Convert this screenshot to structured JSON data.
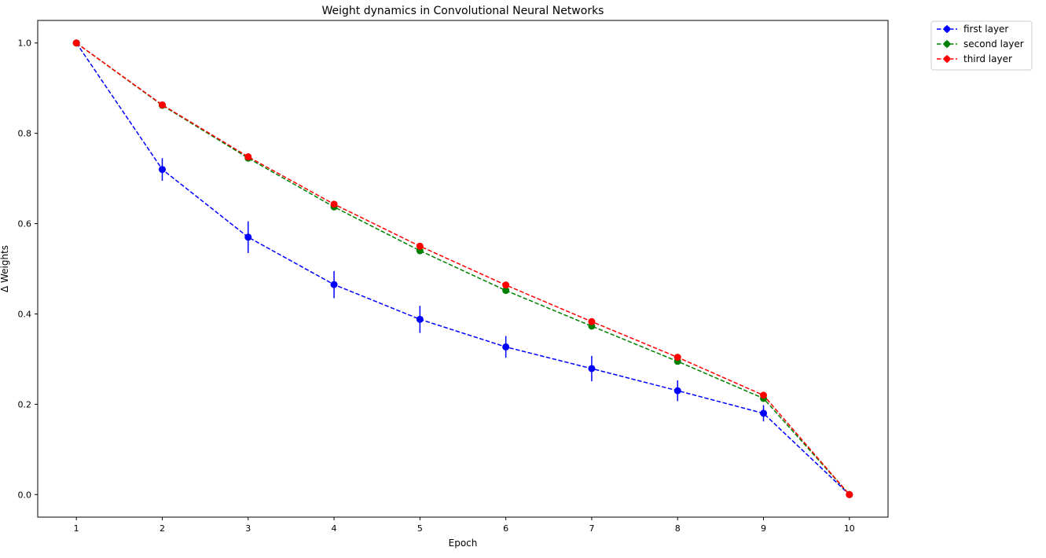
{
  "chart_data": {
    "type": "line",
    "title": "Weight dynamics in Convolutional Neural Networks",
    "xlabel": "Epoch",
    "ylabel": "Δ Weights",
    "x": [
      1,
      2,
      3,
      4,
      5,
      6,
      7,
      8,
      9,
      10
    ],
    "xlim": [
      0.55,
      10.45
    ],
    "ylim": [
      -0.05,
      1.05
    ],
    "xticks": [
      1,
      2,
      3,
      4,
      5,
      6,
      7,
      8,
      9,
      10
    ],
    "yticks": [
      0.0,
      0.2,
      0.4,
      0.6,
      0.8,
      1.0
    ],
    "ytick_labels": [
      "0.0",
      "0.2",
      "0.4",
      "0.6",
      "0.8",
      "1.0"
    ],
    "grid": false,
    "legend_position": "outside top-right",
    "series": [
      {
        "name": "first layer",
        "color": "#0000ff",
        "values": [
          1.0,
          0.72,
          0.57,
          0.465,
          0.388,
          0.327,
          0.279,
          0.23,
          0.18,
          0.0
        ],
        "errors": [
          0.0,
          0.025,
          0.035,
          0.03,
          0.03,
          0.024,
          0.028,
          0.023,
          0.018,
          0.0
        ]
      },
      {
        "name": "second layer",
        "color": "#008000",
        "values": [
          1.0,
          0.862,
          0.745,
          0.637,
          0.54,
          0.452,
          0.373,
          0.295,
          0.213,
          0.0
        ],
        "errors": [
          0.0,
          0.004,
          0.005,
          0.005,
          0.006,
          0.006,
          0.006,
          0.006,
          0.005,
          0.0
        ]
      },
      {
        "name": "third layer",
        "color": "#ff0000",
        "values": [
          1.0,
          0.863,
          0.748,
          0.643,
          0.55,
          0.464,
          0.383,
          0.304,
          0.22,
          0.0
        ],
        "errors": [
          0.0,
          0.003,
          0.004,
          0.004,
          0.004,
          0.004,
          0.004,
          0.004,
          0.004,
          0.0
        ]
      }
    ]
  }
}
